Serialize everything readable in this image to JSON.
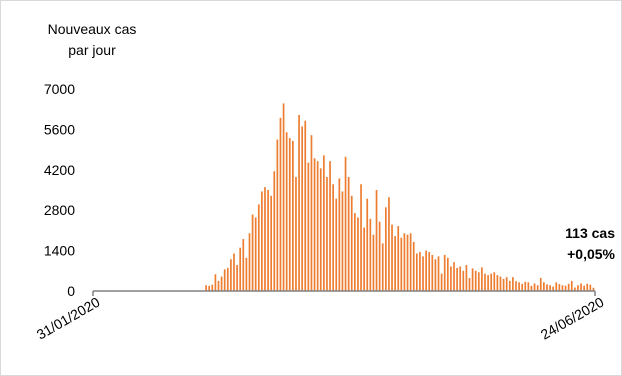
{
  "chart_data": {
    "type": "bar",
    "ylabel_line1": "Nouveaux cas",
    "ylabel_line2": "par jour",
    "x_start": "31/01/2020",
    "x_end": "24/06/2020",
    "ylim": [
      0,
      7000
    ],
    "yticks": [
      0,
      1400,
      2800,
      4200,
      5600,
      7000
    ],
    "ytick_labels": [
      "0",
      "1400",
      "2800",
      "4200",
      "5600",
      "7000"
    ],
    "xtick_labels": [
      "31/01/2020",
      "24/06/2020"
    ],
    "annotation": {
      "line1": "113 cas",
      "line2": "+0,05%"
    },
    "colors": {
      "bar": "#ED7D31",
      "axis": "#808080"
    },
    "grid": false,
    "values": [
      0,
      0,
      0,
      0,
      0,
      0,
      0,
      0,
      0,
      0,
      0,
      0,
      0,
      0,
      0,
      0,
      0,
      0,
      0,
      0,
      0,
      0,
      0,
      0,
      0,
      0,
      0,
      0,
      0,
      0,
      0,
      0,
      0,
      0,
      0,
      0,
      200,
      180,
      220,
      580,
      350,
      500,
      750,
      800,
      1100,
      1300,
      900,
      1500,
      1800,
      1150,
      2000,
      2650,
      2550,
      3000,
      3450,
      3600,
      3500,
      3300,
      4150,
      5250,
      6000,
      6500,
      5500,
      5300,
      5200,
      3950,
      6100,
      5700,
      5900,
      4450,
      5400,
      4600,
      4500,
      4250,
      4700,
      3950,
      4500,
      3700,
      3200,
      3900,
      3450,
      4650,
      3950,
      3300,
      2700,
      2550,
      3700,
      2200,
      3200,
      2500,
      1950,
      3500,
      2400,
      1650,
      2900,
      3250,
      2300,
      1900,
      2250,
      1850,
      2000,
      1950,
      2000,
      1700,
      1300,
      1350,
      1200,
      1400,
      1350,
      1250,
      1100,
      1200,
      600,
      1250,
      1150,
      850,
      1000,
      800,
      850,
      700,
      900,
      450,
      780,
      700,
      650,
      820,
      600,
      550,
      600,
      650,
      550,
      500,
      420,
      480,
      350,
      480,
      340,
      300,
      250,
      320,
      300,
      180,
      260,
      200,
      450,
      300,
      230,
      200,
      150,
      300,
      240,
      200,
      180,
      250,
      350,
      120,
      200,
      260,
      180,
      250,
      220,
      113
    ]
  }
}
